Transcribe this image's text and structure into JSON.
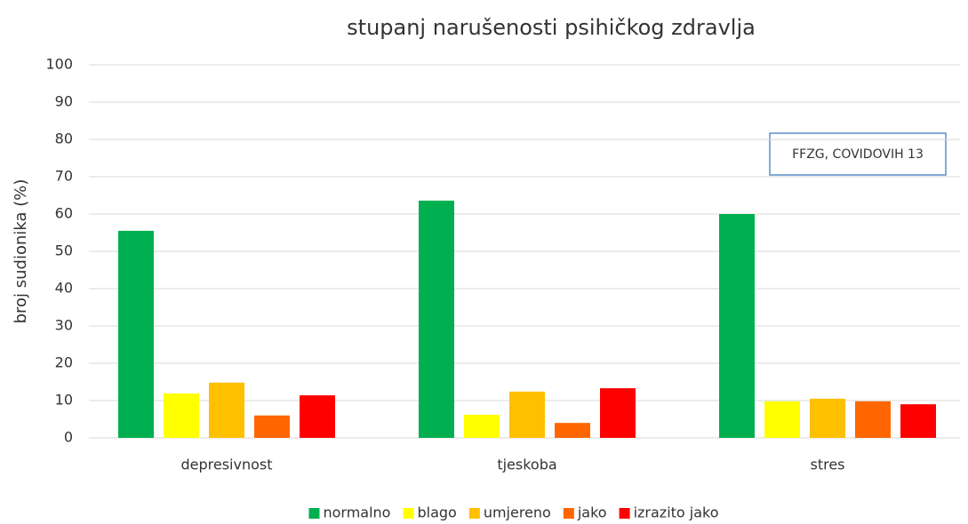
{
  "chart_data": {
    "type": "bar",
    "title": "stupanj narušenosti psihičkog zdravlja",
    "y_label": "broj sudionika (%)",
    "annotation": "FFZG, COVIDOVIH 13",
    "categories": [
      "depresivnost",
      "tjeskoba",
      "stres"
    ],
    "series": [
      {
        "name": "normalno",
        "color": "#00b050",
        "values": [
          55.5,
          63.6,
          60.0
        ]
      },
      {
        "name": "blago",
        "color": "#ffff00",
        "values": [
          11.9,
          6.2,
          9.8
        ]
      },
      {
        "name": "umjereno",
        "color": "#ffc000",
        "values": [
          14.8,
          12.4,
          10.5
        ]
      },
      {
        "name": "jako",
        "color": "#ff6600",
        "values": [
          6.0,
          4.0,
          9.8
        ]
      },
      {
        "name": "izrazito jako",
        "color": "#ff0000",
        "values": [
          11.4,
          13.3,
          9.0
        ]
      }
    ],
    "ylim": [
      0,
      100
    ],
    "yticks": [
      0,
      10,
      20,
      30,
      40,
      50,
      60,
      70,
      80,
      90,
      100
    ],
    "grid": true,
    "legend": "bottom"
  }
}
